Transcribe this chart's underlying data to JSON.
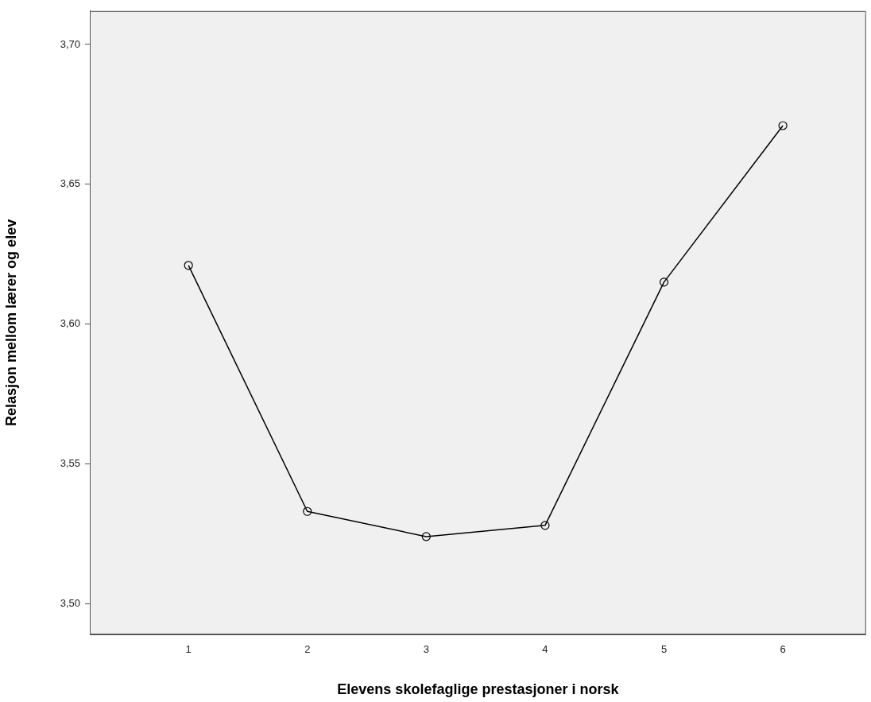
{
  "chart_data": {
    "type": "line",
    "xlabel": "Elevens skolefaglige prestasjoner i norsk",
    "ylabel": "Relasjon mellom lærer og elev",
    "x": [
      1,
      2,
      3,
      4,
      5,
      6
    ],
    "series": [
      {
        "color": "#000000",
        "values": [
          3.621,
          3.533,
          3.524,
          3.528,
          3.615,
          3.671
        ]
      }
    ],
    "xlim": [
      0.17,
      6.7
    ],
    "xticks": [
      1,
      2,
      3,
      4,
      5,
      6
    ],
    "ylim": [
      3.489,
      3.712
    ],
    "yticks": [
      {
        "value": 3.5,
        "label": "3,50"
      },
      {
        "value": 3.55,
        "label": "3,55"
      },
      {
        "value": 3.6,
        "label": "3,60"
      },
      {
        "value": 3.65,
        "label": "3,65"
      },
      {
        "value": 3.7,
        "label": "3,70"
      }
    ],
    "marker": "circle",
    "line_style": "solid"
  }
}
